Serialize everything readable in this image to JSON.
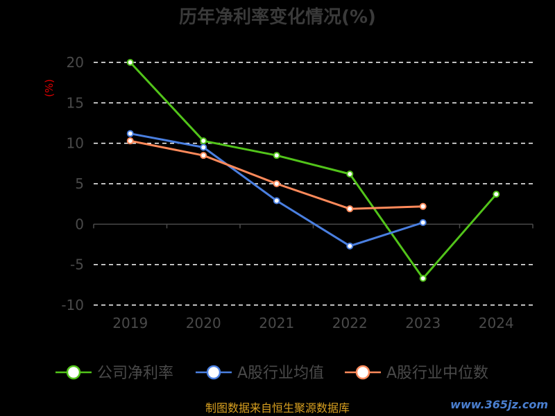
{
  "chart_data": {
    "type": "line",
    "title": "历年净利率变化情况(%)",
    "ylabel": "(%)",
    "categories": [
      "2019",
      "2020",
      "2021",
      "2022",
      "2023",
      "2024"
    ],
    "ylim": [
      -10,
      20
    ],
    "yticks": [
      20,
      15,
      10,
      5,
      0,
      -5,
      -10
    ],
    "grid": "dashed horizontal",
    "legend_position": "bottom",
    "series": [
      {
        "name": "公司净利率",
        "color": "#52c41a",
        "values": [
          20.0,
          10.3,
          8.5,
          6.2,
          -6.7,
          3.7
        ]
      },
      {
        "name": "A股行业均值",
        "color": "#4a7fe0",
        "values": [
          11.2,
          9.5,
          2.9,
          -2.7,
          0.2,
          null
        ]
      },
      {
        "name": "A股行业中位数",
        "color": "#ff8a5b",
        "values": [
          10.3,
          8.5,
          5.0,
          1.9,
          2.2,
          null
        ]
      }
    ]
  },
  "source": "制图数据来自恒生聚源数据库",
  "watermark": "www.365jz.com"
}
